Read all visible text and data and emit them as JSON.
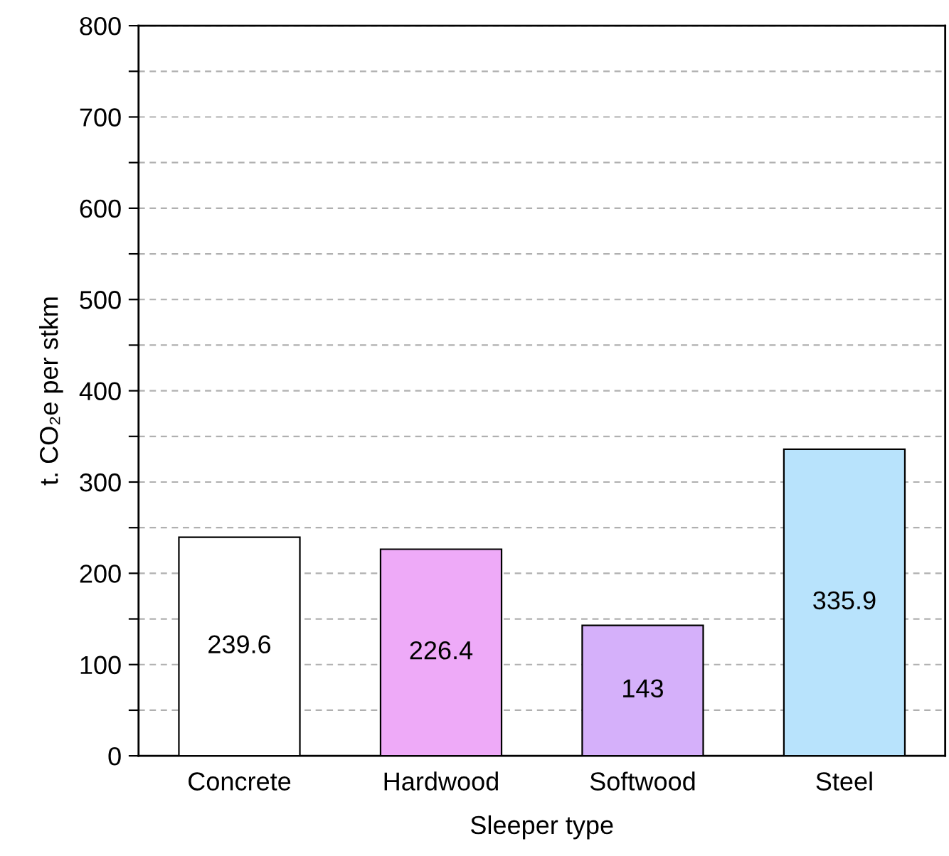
{
  "chart_data": {
    "type": "bar",
    "xlabel": "Sleeper type",
    "ylabel": "t. CO₂e per stkm",
    "categories": [
      "Concrete",
      "Hardwood",
      "Softwood",
      "Steel"
    ],
    "values": [
      239.6,
      226.4,
      143,
      335.9
    ],
    "colors": [
      "#ffffff",
      "#eeaaf8",
      "#d5b0fa",
      "#b8e3fc"
    ],
    "ylim": [
      0,
      800
    ],
    "yticks": [
      0,
      {
        "value": 50,
        "label": null
      },
      100,
      {
        "value": 150,
        "label": null
      },
      200,
      {
        "value": 250,
        "label": null
      },
      300,
      {
        "value": 350,
        "label": null
      },
      400,
      {
        "value": 450,
        "label": null
      },
      500,
      {
        "value": 550,
        "label": null
      },
      600,
      {
        "value": 650,
        "label": null
      },
      700,
      {
        "value": 750,
        "label": null
      },
      800
    ],
    "grid": "y",
    "data_labels": true,
    "legend": false
  }
}
